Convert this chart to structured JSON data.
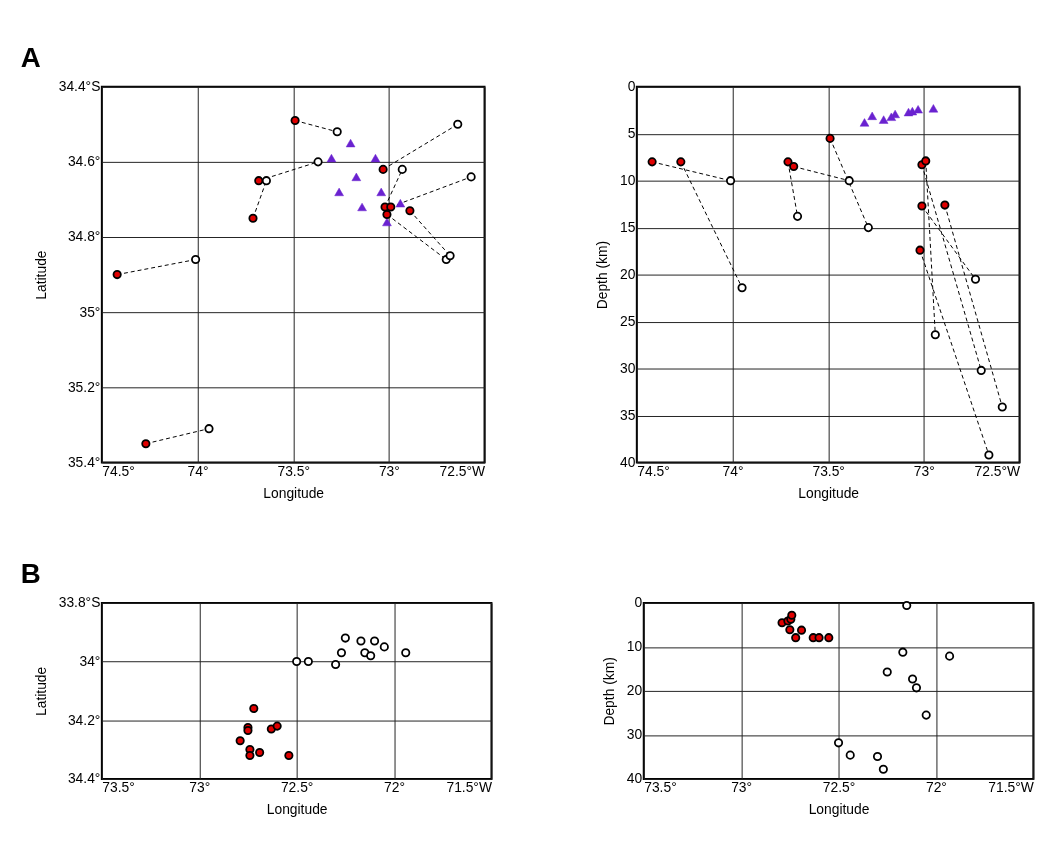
{
  "chart_data": [
    {
      "type": "scatter",
      "annotations": [
        "A"
      ],
      "xlabel": "Longitude",
      "ylabel": "Latitude",
      "grid": true,
      "xlim": [
        74.5,
        72.5
      ],
      "xticks": [
        {
          "value": 74.5,
          "label": "74.5°"
        },
        {
          "value": 74,
          "label": "74°"
        },
        {
          "value": 73.5,
          "label": "73.5°"
        },
        {
          "value": 73,
          "label": "73°"
        },
        {
          "value": 72.5,
          "label": "72.5°W"
        }
      ],
      "ylim": [
        35.4,
        34.4
      ],
      "yticks": [
        {
          "value": 34.4,
          "label": "34.4°S"
        },
        {
          "value": 34.6,
          "label": "34.6°"
        },
        {
          "value": 34.8,
          "label": "34.8°"
        },
        {
          "value": 35,
          "label": "35°"
        },
        {
          "value": 35.2,
          "label": "35.2°"
        },
        {
          "value": 35.4,
          "label": "35.4°"
        }
      ],
      "series": [
        {
          "type": "line",
          "line_style": "dashed",
          "marker": "none",
          "color": "#000000",
          "x": [
            73.49,
            73.27
          ],
          "values": [
            34.49,
            34.52
          ]
        },
        {
          "type": "line",
          "line_style": "dashed",
          "marker": "none",
          "color": "#000000",
          "x": [
            73.68,
            73.37
          ],
          "values": [
            34.65,
            34.6
          ]
        },
        {
          "type": "line",
          "line_style": "dashed",
          "marker": "none",
          "color": "#000000",
          "x": [
            73.71,
            73.64
          ],
          "values": [
            34.75,
            34.65
          ]
        },
        {
          "type": "line",
          "line_style": "dashed",
          "marker": "none",
          "color": "#000000",
          "x": [
            74.42,
            74.01
          ],
          "values": [
            34.9,
            34.86
          ]
        },
        {
          "type": "line",
          "line_style": "dashed",
          "marker": "none",
          "color": "#000000",
          "x": [
            74.27,
            73.94
          ],
          "values": [
            35.35,
            35.31
          ]
        },
        {
          "type": "line",
          "line_style": "dashed",
          "marker": "none",
          "color": "#000000",
          "x": [
            73.03,
            72.64
          ],
          "values": [
            34.62,
            34.5
          ]
        },
        {
          "type": "line",
          "line_style": "dashed",
          "marker": "none",
          "color": "#000000",
          "x": [
            73.02,
            72.93
          ],
          "values": [
            34.72,
            34.62
          ]
        },
        {
          "type": "line",
          "line_style": "dashed",
          "marker": "none",
          "color": "#000000",
          "x": [
            72.99,
            72.57
          ],
          "values": [
            34.72,
            34.64
          ]
        },
        {
          "type": "line",
          "line_style": "dashed",
          "marker": "none",
          "color": "#000000",
          "x": [
            73.01,
            72.7
          ],
          "values": [
            34.74,
            34.86
          ]
        },
        {
          "type": "line",
          "line_style": "dashed",
          "marker": "none",
          "color": "#000000",
          "x": [
            72.89,
            72.68
          ],
          "values": [
            34.73,
            34.85
          ]
        },
        {
          "marker": "triangle",
          "color": "#6a22d0",
          "x": [
            73.2,
            73.3,
            73.07,
            73.17,
            73.26,
            73.04,
            73.14,
            72.94,
            73.01
          ],
          "values": [
            34.55,
            34.59,
            34.59,
            34.64,
            34.68,
            34.68,
            34.72,
            34.71,
            34.76
          ]
        },
        {
          "marker": "circle",
          "color": "#e00000",
          "x": [
            74.42,
            74.27,
            73.71,
            73.68,
            73.49,
            73.03,
            73.02,
            72.99,
            73.01,
            72.89
          ],
          "values": [
            34.9,
            35.35,
            34.75,
            34.65,
            34.49,
            34.62,
            34.72,
            34.72,
            34.74,
            34.73
          ]
        },
        {
          "marker": "circle",
          "color": "#ffffff",
          "x": [
            74.01,
            73.94,
            73.64,
            73.37,
            73.27,
            72.64,
            72.93,
            72.57,
            72.7,
            72.68
          ],
          "values": [
            34.86,
            35.31,
            34.65,
            34.6,
            34.52,
            34.5,
            34.62,
            34.64,
            34.86,
            34.85
          ]
        }
      ]
    },
    {
      "type": "scatter",
      "xlabel": "Longitude",
      "ylabel": "Depth (km)",
      "grid": true,
      "xlim": [
        74.5,
        72.5
      ],
      "xticks": [
        {
          "value": 74.5,
          "label": "74.5°"
        },
        {
          "value": 74,
          "label": "74°"
        },
        {
          "value": 73.5,
          "label": "73.5°"
        },
        {
          "value": 73,
          "label": "73°"
        },
        {
          "value": 72.5,
          "label": "72.5°W"
        }
      ],
      "ylim": [
        40,
        0
      ],
      "yticks": [
        0,
        5,
        10,
        15,
        20,
        25,
        30,
        35,
        40
      ],
      "series": [
        {
          "type": "line",
          "line_style": "dashed",
          "marker": "none",
          "color": "#000000",
          "x": [
            74.42,
            74.01
          ],
          "values": [
            8.0,
            10.0
          ]
        },
        {
          "type": "line",
          "line_style": "dashed",
          "marker": "none",
          "color": "#000000",
          "x": [
            74.27,
            73.95
          ],
          "values": [
            8.0,
            21.4
          ]
        },
        {
          "type": "line",
          "line_style": "dashed",
          "marker": "none",
          "color": "#000000",
          "x": [
            73.71,
            73.66
          ],
          "values": [
            8.0,
            13.8
          ]
        },
        {
          "type": "line",
          "line_style": "dashed",
          "marker": "none",
          "color": "#000000",
          "x": [
            73.68,
            73.39
          ],
          "values": [
            8.5,
            10.0
          ]
        },
        {
          "type": "line",
          "line_style": "dashed",
          "marker": "none",
          "color": "#000000",
          "x": [
            73.49,
            73.29
          ],
          "values": [
            5.5,
            15.0
          ]
        },
        {
          "type": "line",
          "line_style": "dashed",
          "marker": "none",
          "color": "#000000",
          "x": [
            73.01,
            72.73
          ],
          "values": [
            12.7,
            20.5
          ]
        },
        {
          "type": "line",
          "line_style": "dashed",
          "marker": "none",
          "color": "#000000",
          "x": [
            72.99,
            72.94
          ],
          "values": [
            7.9,
            26.4
          ]
        },
        {
          "type": "line",
          "line_style": "dashed",
          "marker": "none",
          "color": "#000000",
          "x": [
            73.01,
            72.7
          ],
          "values": [
            8.3,
            30.2
          ]
        },
        {
          "type": "line",
          "line_style": "dashed",
          "marker": "none",
          "color": "#000000",
          "x": [
            72.89,
            72.59
          ],
          "values": [
            12.6,
            34.1
          ]
        },
        {
          "type": "line",
          "line_style": "dashed",
          "marker": "none",
          "color": "#000000",
          "x": [
            73.02,
            72.66
          ],
          "values": [
            17.4,
            39.2
          ]
        },
        {
          "marker": "triangle",
          "color": "#6a22d0",
          "x": [
            73.31,
            73.27,
            73.21,
            73.17,
            73.15,
            73.08,
            73.06,
            73.03,
            72.95
          ],
          "values": [
            3.8,
            3.1,
            3.5,
            3.2,
            2.9,
            2.7,
            2.6,
            2.4,
            2.3
          ]
        },
        {
          "marker": "circle",
          "color": "#e00000",
          "x": [
            74.42,
            74.27,
            73.71,
            73.68,
            73.49,
            73.01,
            72.99,
            73.01,
            72.89,
            73.02
          ],
          "values": [
            8.0,
            8.0,
            8.0,
            8.5,
            5.5,
            8.3,
            7.9,
            12.7,
            12.6,
            17.4
          ]
        },
        {
          "marker": "circle",
          "color": "#ffffff",
          "x": [
            74.01,
            73.95,
            73.66,
            73.39,
            73.29,
            72.73,
            72.94,
            72.7,
            72.59,
            72.66
          ],
          "values": [
            10.0,
            21.4,
            13.8,
            10.0,
            15.0,
            20.5,
            26.4,
            30.2,
            34.1,
            39.2
          ]
        }
      ]
    },
    {
      "type": "scatter",
      "annotations": [
        "B"
      ],
      "xlabel": "Longitude",
      "ylabel": "Latitude",
      "grid": true,
      "xlim": [
        73.5,
        71.5
      ],
      "xticks": [
        {
          "value": 73.5,
          "label": "73.5°"
        },
        {
          "value": 73,
          "label": "73°"
        },
        {
          "value": 72.5,
          "label": "72.5°"
        },
        {
          "value": 72,
          "label": "72°"
        },
        {
          "value": 71.5,
          "label": "71.5°W"
        }
      ],
      "ylim": [
        34.4,
        33.8
      ],
      "yticks": [
        {
          "value": 33.8,
          "label": "33.8°S"
        },
        {
          "value": 34,
          "label": "34°"
        },
        {
          "value": 34.2,
          "label": "34.2°"
        },
        {
          "value": 34.4,
          "label": "34.4°"
        }
      ],
      "series": [
        {
          "marker": "circle",
          "color": "#e00000",
          "x": [
            72.72,
            72.75,
            72.75,
            72.63,
            72.6,
            72.79,
            72.74,
            72.74,
            72.69,
            72.54
          ],
          "values": [
            34.16,
            34.225,
            34.235,
            34.23,
            34.22,
            34.27,
            34.3,
            34.32,
            34.31,
            34.32
          ]
        },
        {
          "marker": "circle",
          "color": "#ffffff",
          "x": [
            72.25,
            72.17,
            72.1,
            72.05,
            72.27,
            72.15,
            72.12,
            71.94,
            72.5,
            72.44,
            72.3
          ],
          "values": [
            33.92,
            33.93,
            33.93,
            33.95,
            33.97,
            33.97,
            33.98,
            33.97,
            34.0,
            34.0,
            34.01
          ]
        }
      ]
    },
    {
      "type": "scatter",
      "xlabel": "Longitude",
      "ylabel": "Depth (km)",
      "grid": true,
      "xlim": [
        73.5,
        71.5
      ],
      "xticks": [
        {
          "value": 73.5,
          "label": "73.5°"
        },
        {
          "value": 73,
          "label": "73°"
        },
        {
          "value": 72.5,
          "label": "72.5°"
        },
        {
          "value": 72,
          "label": "72°"
        },
        {
          "value": 71.5,
          "label": "71.5°W"
        }
      ],
      "ylim": [
        40,
        0
      ],
      "yticks": [
        0,
        10,
        20,
        30,
        40
      ],
      "series": [
        {
          "marker": "circle",
          "color": "#e00000",
          "x": [
            72.79,
            72.76,
            72.745,
            72.74,
            72.75,
            72.69,
            72.72,
            72.63,
            72.6,
            72.55
          ],
          "values": [
            4.5,
            4.1,
            3.7,
            2.8,
            6.1,
            6.2,
            7.9,
            7.9,
            7.9,
            7.9
          ]
        },
        {
          "marker": "circle",
          "color": "#ffffff",
          "x": [
            72.15,
            72.17,
            71.93,
            72.25,
            72.12,
            72.1,
            72.05,
            72.5,
            72.44,
            72.3,
            72.27
          ],
          "values": [
            0.6,
            11.2,
            12.1,
            15.7,
            17.3,
            19.3,
            25.5,
            31.8,
            34.6,
            34.9,
            37.8
          ]
        }
      ]
    }
  ]
}
